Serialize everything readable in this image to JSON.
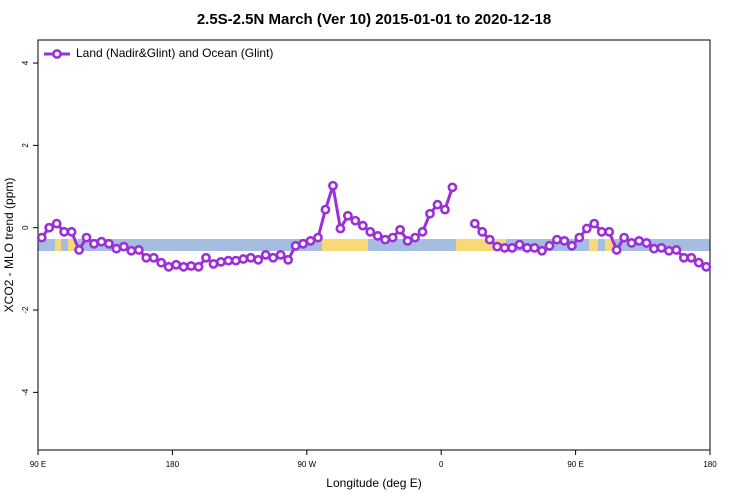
{
  "chart_data": {
    "type": "line",
    "title": "2.5S-2.5N March (Ver 10)   2015-01-01 to 2020-12-18",
    "x_label": "Longitude (deg E)",
    "y_label": "XCO2 - MLO trend (ppm)",
    "x": [
      92.5,
      97.5,
      102.5,
      107.5,
      112.5,
      117.5,
      122.5,
      127.5,
      132.5,
      137.5,
      142.5,
      147.5,
      152.5,
      157.5,
      162.5,
      167.5,
      172.5,
      177.5,
      182.5,
      187.5,
      192.5,
      197.5,
      202.5,
      207.5,
      212.5,
      217.5,
      222.5,
      227.5,
      232.5,
      237.5,
      242.5,
      247.5,
      252.5,
      257.5,
      262.5,
      267.5,
      272.5,
      277.5,
      282.5,
      287.5,
      292.5,
      297.5,
      302.5,
      307.5,
      312.5,
      317.5,
      322.5,
      327.5,
      332.5,
      337.5,
      342.5,
      347.5,
      352.5,
      357.5,
      362.5,
      367.5,
      372.5,
      377.5,
      382.5,
      387.5,
      392.5,
      397.5,
      402.5,
      407.5,
      412.5,
      417.5,
      422.5,
      427.5,
      432.5,
      437.5,
      442.5,
      447.5,
      452.5,
      457.5,
      462.5,
      467.5,
      472.5,
      477.5,
      482.5,
      487.5,
      492.5,
      497.5,
      502.5,
      507.5,
      512.5,
      517.5,
      522.5,
      527.5,
      532.5,
      537.5
    ],
    "series": [
      {
        "name": "Land (Nadir&Glint) and Ocean (Glint)",
        "color": "#9b30d9",
        "values": [
          -0.24,
          0,
          0.1,
          -0.1,
          -0.1,
          -0.54,
          -0.24,
          -0.39,
          -0.34,
          -0.39,
          -0.51,
          -0.46,
          -0.56,
          -0.54,
          -0.73,
          -0.73,
          -0.85,
          -0.95,
          -0.9,
          -0.95,
          -0.93,
          -0.95,
          -0.73,
          -0.88,
          -0.83,
          -0.8,
          -0.8,
          -0.76,
          -0.73,
          -0.78,
          -0.66,
          -0.73,
          -0.66,
          -0.78,
          -0.44,
          -0.39,
          -0.32,
          -0.24,
          0.44,
          1.02,
          -0.02,
          0.29,
          0.17,
          0.05,
          -0.1,
          -0.2,
          -0.29,
          -0.24,
          -0.05,
          -0.32,
          -0.24,
          -0.1,
          0.34,
          0.56,
          0.44,
          0.98,
          null,
          null,
          0.1,
          -0.1,
          -0.29,
          -0.46,
          -0.49,
          -0.49,
          -0.41,
          -0.49,
          -0.49,
          -0.56,
          -0.44,
          -0.29,
          -0.32,
          -0.44,
          -0.24,
          -0.02,
          0.1,
          -0.1,
          -0.1,
          -0.54,
          -0.24,
          -0.37,
          -0.32,
          -0.37,
          -0.51,
          -0.49,
          -0.56,
          -0.54,
          -0.73,
          -0.73,
          -0.85,
          -0.95
        ]
      }
    ],
    "xlim": [
      90,
      540
    ],
    "xticks": [
      {
        "value": 90,
        "label": "90 E"
      },
      180,
      {
        "value": 270,
        "label": "90 W"
      },
      {
        "value": 360,
        "label": "0"
      },
      {
        "value": 450,
        "label": "90 E"
      },
      {
        "value": 540,
        "label": "180"
      }
    ],
    "ylim": [
      -5.4,
      4.56
    ],
    "yticks": [
      -4,
      -2,
      0,
      2,
      4
    ],
    "legend": "top-left"
  }
}
